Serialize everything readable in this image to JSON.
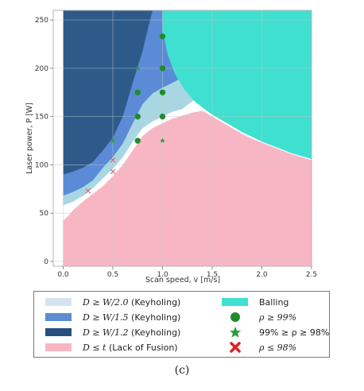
{
  "chart_data": {
    "type": "area",
    "xlabel": "Scan speed, v [m/s]",
    "ylabel": "Laser power, P [W]",
    "xlim": [
      -0.1,
      2.5
    ],
    "ylim": [
      -5,
      260
    ],
    "xticks": [
      0.0,
      0.5,
      1.0,
      1.5,
      2.0,
      2.5
    ],
    "xtick_labels": [
      "0.0",
      "0.5",
      "1.0",
      "1.5",
      "2.0",
      "2.5"
    ],
    "yticks": [
      0,
      50,
      100,
      150,
      200,
      250
    ],
    "ytick_labels": [
      "0",
      "50",
      "100",
      "150",
      "200",
      "250"
    ],
    "grid": true,
    "regions": [
      {
        "name": "keyhole_w12",
        "color": "#2e5a8a",
        "boundary": [
          [
            0,
            90
          ],
          [
            0.1,
            93
          ],
          [
            0.2,
            97
          ],
          [
            0.3,
            103
          ],
          [
            0.4,
            115
          ],
          [
            0.5,
            128
          ],
          [
            0.6,
            150
          ],
          [
            0.7,
            185
          ],
          [
            0.8,
            218
          ],
          [
            0.85,
            240
          ],
          [
            0.9,
            260
          ]
        ]
      },
      {
        "name": "keyhole_w15",
        "color": "#5b8bd6",
        "boundary": [
          [
            0,
            68
          ],
          [
            0.1,
            72
          ],
          [
            0.2,
            77
          ],
          [
            0.3,
            84
          ],
          [
            0.4,
            97
          ],
          [
            0.5,
            108
          ],
          [
            0.6,
            122
          ],
          [
            0.7,
            143
          ],
          [
            0.8,
            163
          ],
          [
            0.9,
            174
          ],
          [
            1.0,
            180
          ],
          [
            1.1,
            185
          ]
        ]
      },
      {
        "name": "keyhole_w20",
        "color": "#a8d6e3",
        "boundary": [
          [
            0,
            58
          ],
          [
            0.1,
            62
          ],
          [
            0.2,
            68
          ],
          [
            0.3,
            76
          ],
          [
            0.4,
            86
          ],
          [
            0.5,
            96
          ],
          [
            0.6,
            108
          ],
          [
            0.7,
            124
          ],
          [
            0.8,
            138
          ],
          [
            0.9,
            145
          ],
          [
            1.0,
            150
          ],
          [
            1.1,
            155
          ],
          [
            1.2,
            158
          ]
        ]
      },
      {
        "name": "lack_of_fusion",
        "color": "#f8b6c4",
        "boundary": [
          [
            0,
            42
          ],
          [
            0.05,
            47
          ],
          [
            0.1,
            53
          ],
          [
            0.2,
            62
          ],
          [
            0.3,
            70
          ],
          [
            0.4,
            78
          ],
          [
            0.5,
            88
          ],
          [
            0.6,
            100
          ],
          [
            0.7,
            115
          ],
          [
            0.8,
            130
          ],
          [
            0.9,
            138
          ],
          [
            1.0,
            143
          ],
          [
            1.1,
            148
          ],
          [
            1.2,
            151
          ],
          [
            1.3,
            154
          ],
          [
            1.4,
            156
          ],
          [
            1.5,
            150
          ],
          [
            1.6,
            144
          ],
          [
            1.7,
            138
          ],
          [
            1.8,
            132
          ],
          [
            1.9,
            127
          ],
          [
            2.0,
            123
          ],
          [
            2.1,
            119
          ],
          [
            2.2,
            115
          ],
          [
            2.3,
            111
          ],
          [
            2.4,
            108
          ],
          [
            2.5,
            105
          ]
        ]
      },
      {
        "name": "balling",
        "color": "#40e0d0",
        "boundary": [
          [
            1.0,
            260
          ],
          [
            1.0,
            240
          ],
          [
            1.05,
            215
          ],
          [
            1.12,
            195
          ],
          [
            1.22,
            178
          ],
          [
            1.32,
            166
          ],
          [
            1.42,
            158
          ],
          [
            1.5,
            152
          ],
          [
            1.6,
            146
          ],
          [
            1.7,
            140
          ],
          [
            1.8,
            134
          ],
          [
            1.9,
            129
          ],
          [
            2.0,
            124
          ],
          [
            2.1,
            120
          ],
          [
            2.2,
            116
          ],
          [
            2.3,
            112
          ],
          [
            2.4,
            109
          ],
          [
            2.5,
            106
          ],
          [
            2.5,
            260
          ]
        ]
      }
    ],
    "series": [
      {
        "name": "ρ ≥ 99%",
        "marker": "circle",
        "color": "#1f8c2b",
        "points": [
          [
            0.75,
            125
          ],
          [
            0.75,
            150
          ],
          [
            0.75,
            175
          ],
          [
            1.0,
            150
          ],
          [
            1.0,
            175
          ],
          [
            1.0,
            200
          ],
          [
            1.0,
            233
          ]
        ]
      },
      {
        "name": "99% ≥ ρ ≥ 98%",
        "marker": "star",
        "color": "#2a9c3c",
        "points": [
          [
            0.5,
            125
          ],
          [
            0.75,
            200
          ],
          [
            1.0,
            125
          ]
        ]
      },
      {
        "name": "ρ ≤ 98%",
        "marker": "x",
        "color": "#cc6677",
        "points": [
          [
            0.25,
            73
          ],
          [
            0.5,
            93
          ],
          [
            0.5,
            105
          ]
        ]
      }
    ]
  },
  "legend": {
    "items": [
      {
        "label_math": "D ≥ W/2.0",
        "label_text": " (Keyholing)",
        "color": "#d5e3f1",
        "kind": "swatch"
      },
      {
        "label_math": "D ≥ W/1.5",
        "label_text": " (Keyholing)",
        "color": "#5a8ed0",
        "kind": "swatch"
      },
      {
        "label_math": "D ≥ W/1.2",
        "label_text": " (Keyholing)",
        "color": "#264f7e",
        "kind": "swatch"
      },
      {
        "label_math": "D ≤ t",
        "label_text": " (Lack of Fusion)",
        "color": "#f8b6c4",
        "kind": "swatch"
      },
      {
        "label_math": "",
        "label_text": "Balling",
        "color": "#40e0d0",
        "kind": "swatch"
      },
      {
        "label_math": "ρ ≥ 99%",
        "label_text": "",
        "color": "#1f8c2b",
        "kind": "circle"
      },
      {
        "label_math": "",
        "label_text": "99% ≥ ρ ≥ 98%",
        "color": "#2a9c3c",
        "kind": "star"
      },
      {
        "label_math": "ρ ≤ 98%",
        "label_text": "",
        "color": "#dd2222",
        "kind": "x"
      }
    ]
  },
  "caption": "(c)"
}
